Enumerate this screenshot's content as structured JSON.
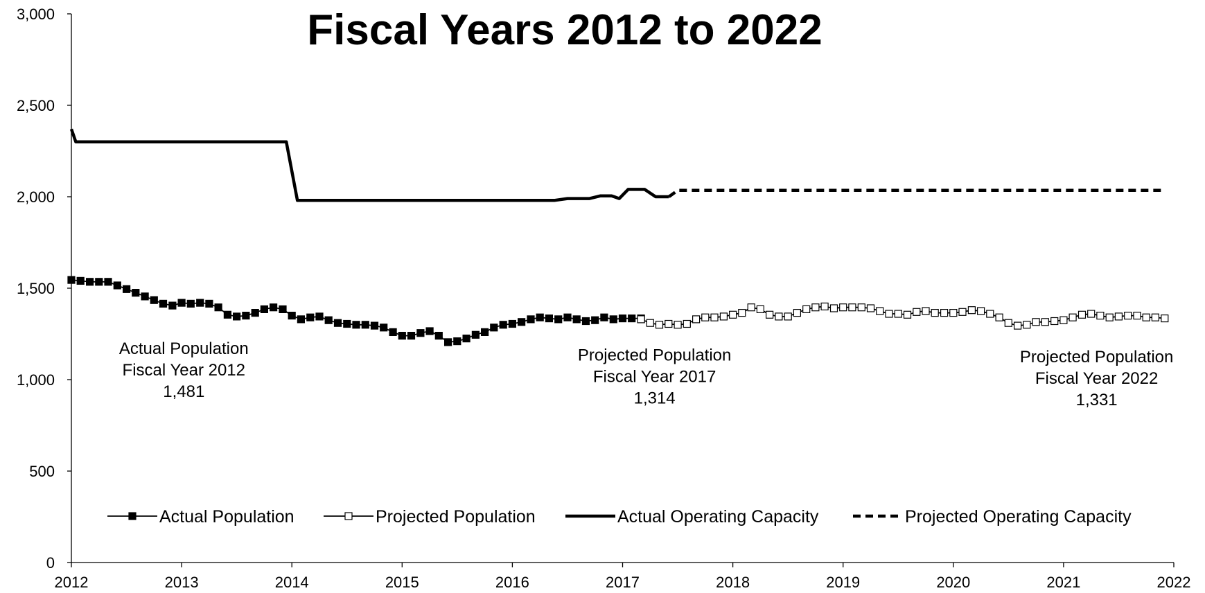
{
  "chart_data": {
    "type": "line",
    "title": "Fiscal Years 2012 to 2022",
    "xlabel": "",
    "ylabel": "",
    "xlim": [
      2012,
      2022
    ],
    "ylim": [
      0,
      3000
    ],
    "x_ticks": [
      "2012",
      "2013",
      "2014",
      "2015",
      "2016",
      "2017",
      "2018",
      "2019",
      "2020",
      "2021",
      "2022"
    ],
    "y_ticks": [
      "0",
      "500",
      "1,000",
      "1,500",
      "2,000",
      "2,500",
      "3,000"
    ],
    "grid": false,
    "legend_position": "bottom",
    "series": [
      {
        "name": "Actual Population",
        "marker": "filled-square",
        "line": "solid",
        "x": [
          2012.0,
          2012.083,
          2012.167,
          2012.25,
          2012.333,
          2012.417,
          2012.5,
          2012.583,
          2012.667,
          2012.75,
          2012.833,
          2012.917,
          2013.0,
          2013.083,
          2013.167,
          2013.25,
          2013.333,
          2013.417,
          2013.5,
          2013.583,
          2013.667,
          2013.75,
          2013.833,
          2013.917,
          2014.0,
          2014.083,
          2014.167,
          2014.25,
          2014.333,
          2014.417,
          2014.5,
          2014.583,
          2014.667,
          2014.75,
          2014.833,
          2014.917,
          2015.0,
          2015.083,
          2015.167,
          2015.25,
          2015.333,
          2015.417,
          2015.5,
          2015.583,
          2015.667,
          2015.75,
          2015.833,
          2015.917,
          2016.0,
          2016.083,
          2016.167,
          2016.25,
          2016.333,
          2016.417,
          2016.5,
          2016.583,
          2016.667,
          2016.75,
          2016.833,
          2016.917,
          2017.0,
          2017.083,
          2017.167
        ],
        "y": [
          1545,
          1540,
          1535,
          1535,
          1535,
          1515,
          1495,
          1475,
          1455,
          1435,
          1415,
          1405,
          1420,
          1415,
          1420,
          1415,
          1395,
          1355,
          1345,
          1350,
          1365,
          1385,
          1395,
          1385,
          1350,
          1330,
          1340,
          1345,
          1325,
          1310,
          1305,
          1300,
          1300,
          1295,
          1285,
          1260,
          1240,
          1240,
          1255,
          1265,
          1240,
          1205,
          1210,
          1225,
          1245,
          1260,
          1285,
          1300,
          1305,
          1315,
          1330,
          1340,
          1335,
          1330,
          1340,
          1330,
          1320,
          1325,
          1340,
          1330,
          1335,
          1335,
          1335
        ]
      },
      {
        "name": "Projected Population",
        "marker": "open-square",
        "line": "solid",
        "x": [
          2017.167,
          2017.25,
          2017.333,
          2017.417,
          2017.5,
          2017.583,
          2017.667,
          2017.75,
          2017.833,
          2017.917,
          2018.0,
          2018.083,
          2018.167,
          2018.25,
          2018.333,
          2018.417,
          2018.5,
          2018.583,
          2018.667,
          2018.75,
          2018.833,
          2018.917,
          2019.0,
          2019.083,
          2019.167,
          2019.25,
          2019.333,
          2019.417,
          2019.5,
          2019.583,
          2019.667,
          2019.75,
          2019.833,
          2019.917,
          2020.0,
          2020.083,
          2020.167,
          2020.25,
          2020.333,
          2020.417,
          2020.5,
          2020.583,
          2020.667,
          2020.75,
          2020.833,
          2020.917,
          2021.0,
          2021.083,
          2021.167,
          2021.25,
          2021.333,
          2021.417,
          2021.5,
          2021.583,
          2021.667,
          2021.75,
          2021.833,
          2021.917
        ],
        "y": [
          1330,
          1310,
          1300,
          1305,
          1300,
          1305,
          1330,
          1340,
          1340,
          1345,
          1355,
          1365,
          1395,
          1385,
          1355,
          1345,
          1345,
          1365,
          1385,
          1395,
          1400,
          1390,
          1395,
          1395,
          1395,
          1390,
          1375,
          1360,
          1360,
          1355,
          1370,
          1375,
          1365,
          1365,
          1365,
          1370,
          1380,
          1375,
          1360,
          1340,
          1310,
          1295,
          1300,
          1315,
          1315,
          1320,
          1325,
          1340,
          1355,
          1360,
          1350,
          1340,
          1345,
          1350,
          1350,
          1340,
          1340,
          1335
        ]
      },
      {
        "name": "Actual Operating Capacity",
        "marker": "none",
        "line": "solid",
        "x": [
          2012.0,
          2012.04,
          2013.95,
          2014.05,
          2016.38,
          2016.5,
          2016.7,
          2016.8,
          2016.9,
          2016.97,
          2017.05,
          2017.2,
          2017.3,
          2017.42
        ],
        "y": [
          2370,
          2300,
          2300,
          1980,
          1980,
          1990,
          1990,
          2005,
          2005,
          1990,
          2040,
          2040,
          2000,
          2000
        ]
      },
      {
        "name": "Projected Operating Capacity",
        "marker": "none",
        "line": "dashed",
        "x": [
          2017.42,
          2017.5,
          2021.92
        ],
        "y": [
          2000,
          2035,
          2035
        ]
      }
    ],
    "annotations": [
      {
        "lines": [
          "Actual Population",
          "Fiscal Year 2012",
          "1,481"
        ],
        "x": 2013.02,
        "y": 1140
      },
      {
        "lines": [
          "Projected Population",
          "Fiscal Year 2017",
          "1,314"
        ],
        "x": 2017.29,
        "y": 1105
      },
      {
        "lines": [
          "Projected Population",
          "Fiscal Year 2022",
          "1,331"
        ],
        "x": 2021.3,
        "y": 1095
      }
    ]
  }
}
